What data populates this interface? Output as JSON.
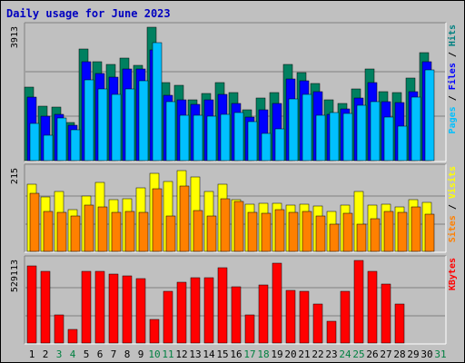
{
  "chart_data": [
    {
      "type": "bar",
      "title": "Daily usage for June 2023",
      "panel": "pages-files-hits",
      "ymax_label": "3913",
      "ymax": 3913,
      "right_label": [
        {
          "text": "Pages",
          "color": "#00c0ff"
        },
        {
          "text": " / ",
          "color": "#000000"
        },
        {
          "text": "Files",
          "color": "#0000ff"
        },
        {
          "text": " / ",
          "color": "#000000"
        },
        {
          "text": "Hits",
          "color": "#008080"
        }
      ],
      "categories": [
        "1",
        "2",
        "3",
        "4",
        "5",
        "6",
        "7",
        "8",
        "9",
        "10",
        "11",
        "12",
        "13",
        "14",
        "15",
        "16",
        "17",
        "18",
        "19",
        "20",
        "21",
        "22",
        "23",
        "24",
        "25",
        "26",
        "27",
        "28",
        "29",
        "30",
        "31"
      ],
      "series": [
        {
          "name": "Hits",
          "color": "#008060",
          "values": [
            2150,
            1600,
            1580,
            1120,
            3270,
            2910,
            2810,
            3000,
            2800,
            3913,
            2290,
            2200,
            1780,
            1980,
            2300,
            2000,
            1500,
            1850,
            2000,
            2820,
            2570,
            2270,
            1780,
            1680,
            2100,
            2700,
            2020,
            1990,
            2430,
            3160,
            0
          ]
        },
        {
          "name": "Files",
          "color": "#0000ff",
          "values": [
            1870,
            1300,
            1350,
            1050,
            2910,
            2550,
            2450,
            2700,
            2680,
            3240,
            1910,
            1790,
            1650,
            1790,
            1950,
            1690,
            1290,
            1480,
            1680,
            2400,
            2350,
            2010,
            1350,
            1510,
            1850,
            2300,
            1720,
            1700,
            2010,
            2900,
            0
          ]
        },
        {
          "name": "Pages",
          "color": "#00c0ff",
          "values": [
            1100,
            740,
            1240,
            910,
            2380,
            2110,
            1930,
            2090,
            2350,
            3460,
            1720,
            1320,
            1320,
            1310,
            1370,
            1420,
            1150,
            810,
            930,
            1800,
            1930,
            1330,
            1400,
            1380,
            1620,
            1720,
            1270,
            1010,
            1860,
            2650,
            0
          ]
        }
      ]
    },
    {
      "type": "bar",
      "panel": "visits-sites",
      "ymax_label": "215",
      "ymax": 215,
      "right_label": [
        {
          "text": "Sites",
          "color": "#ff8000"
        },
        {
          "text": " / ",
          "color": "#000000"
        },
        {
          "text": "Visits",
          "color": "#ffff00"
        }
      ],
      "categories": [
        "1",
        "2",
        "3",
        "4",
        "5",
        "6",
        "7",
        "8",
        "9",
        "10",
        "11",
        "12",
        "13",
        "14",
        "15",
        "16",
        "17",
        "18",
        "19",
        "20",
        "21",
        "22",
        "23",
        "24",
        "25",
        "26",
        "27",
        "28",
        "29",
        "30",
        "31"
      ],
      "series": [
        {
          "name": "Visits",
          "color": "#ffff00",
          "values": [
            175,
            142,
            157,
            108,
            145,
            179,
            134,
            137,
            165,
            203,
            183,
            210,
            193,
            157,
            175,
            135,
            124,
            125,
            125,
            121,
            122,
            119,
            105,
            121,
            155,
            121,
            124,
            116,
            135,
            128,
            0
          ]
        },
        {
          "name": "Sites",
          "color": "#ff8000",
          "values": [
            152,
            104,
            102,
            92,
            121,
            116,
            101,
            103,
            102,
            163,
            93,
            171,
            107,
            92,
            136,
            131,
            101,
            99,
            108,
            101,
            103,
            93,
            70,
            99,
            70,
            86,
            103,
            101,
            115,
            97,
            0
          ]
        }
      ]
    },
    {
      "type": "bar",
      "panel": "kbytes",
      "ymax_label": "529113",
      "ymax": 529113,
      "right_label": [
        {
          "text": "KBytes",
          "color": "#ff0000"
        }
      ],
      "categories": [
        "1",
        "2",
        "3",
        "4",
        "5",
        "6",
        "7",
        "8",
        "9",
        "10",
        "11",
        "12",
        "13",
        "14",
        "15",
        "16",
        "17",
        "18",
        "19",
        "20",
        "21",
        "22",
        "23",
        "24",
        "25",
        "26",
        "27",
        "28",
        "29",
        "30",
        "31"
      ],
      "series": [
        {
          "name": "KBytes",
          "color": "#ff0000",
          "values": [
            492000,
            460000,
            180000,
            85000,
            460000,
            460000,
            440000,
            430000,
            410000,
            150000,
            330000,
            390000,
            420000,
            420000,
            480000,
            360000,
            180000,
            370000,
            512000,
            340000,
            330000,
            250000,
            140000,
            330000,
            529113,
            460000,
            380000,
            250000,
            0,
            0,
            0
          ]
        }
      ]
    }
  ],
  "weekend_days": [
    3,
    4,
    10,
    11,
    17,
    18,
    24,
    25,
    31
  ]
}
